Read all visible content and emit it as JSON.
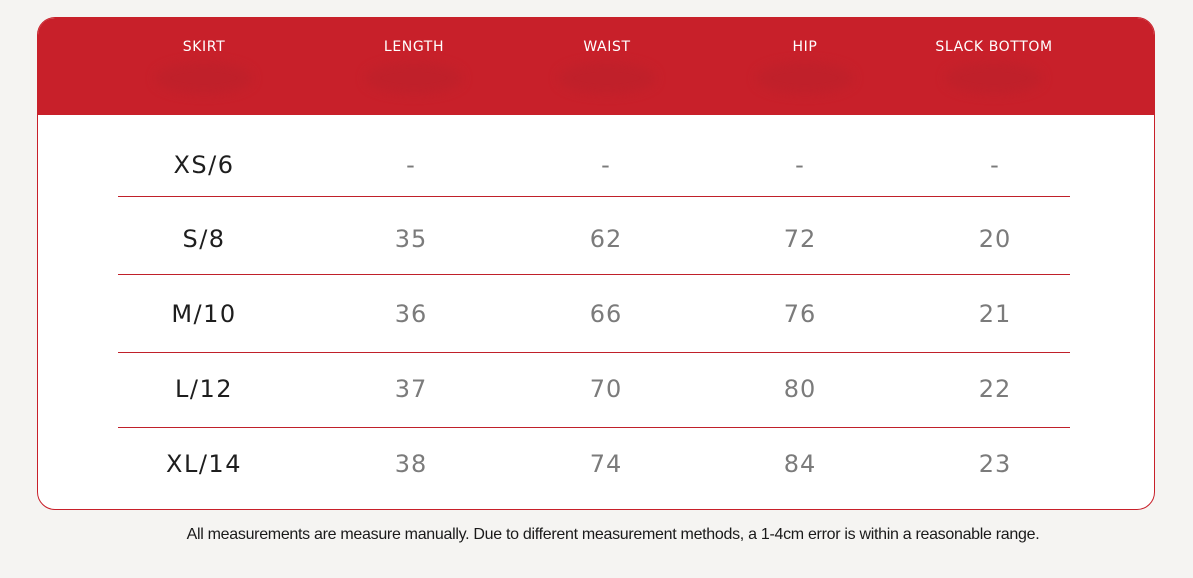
{
  "colors": {
    "accent": "#c8202a",
    "card_background": "#ffffff",
    "page_background": "#f5f4f2"
  },
  "table": {
    "headers": [
      "SKIRT",
      "LENGTH",
      "WAIST",
      "HIP",
      "SLACK BOTTOM"
    ],
    "rows": [
      [
        "XS/6",
        "-",
        "-",
        "-",
        "-"
      ],
      [
        "S/8",
        "35",
        "62",
        "72",
        "20"
      ],
      [
        "M/10",
        "36",
        "66",
        "76",
        "21"
      ],
      [
        "L/12",
        "37",
        "70",
        "80",
        "22"
      ],
      [
        "XL/14",
        "38",
        "74",
        "84",
        "23"
      ]
    ]
  },
  "footnote": "All measurements are measure manually. Due to different measurement methods, a 1-4cm error is within a reasonable range."
}
